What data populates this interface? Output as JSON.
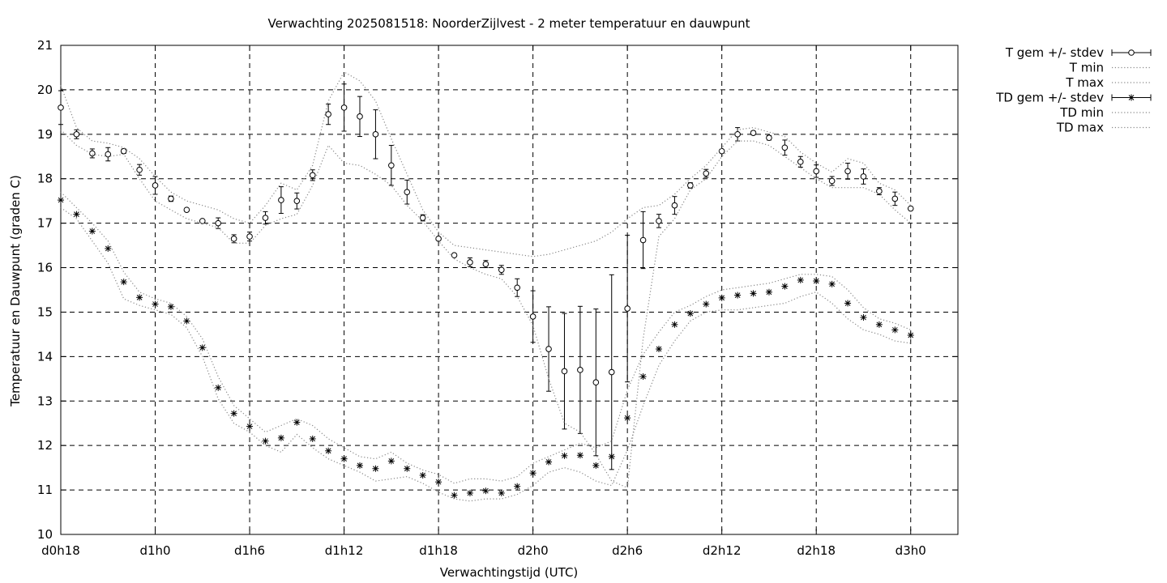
{
  "chart_data": {
    "type": "line",
    "title": "Verwachting 2025081518: NoorderZijlvest - 2 meter temperatuur en dauwpunt",
    "xlabel": "Verwachtingstijd (UTC)",
    "ylabel": "Temperatuur en Dauwpunt (graden C)",
    "xlim": [
      18,
      75
    ],
    "ylim": [
      10,
      21
    ],
    "x_ticks": [
      {
        "x": 18,
        "label": "d0h18"
      },
      {
        "x": 24,
        "label": "d1h0"
      },
      {
        "x": 30,
        "label": "d1h6"
      },
      {
        "x": 36,
        "label": "d1h12"
      },
      {
        "x": 42,
        "label": "d1h18"
      },
      {
        "x": 48,
        "label": "d2h0"
      },
      {
        "x": 54,
        "label": "d2h6"
      },
      {
        "x": 60,
        "label": "d2h12"
      },
      {
        "x": 66,
        "label": "d2h18"
      },
      {
        "x": 72,
        "label": "d3h0"
      }
    ],
    "y_ticks": [
      10,
      11,
      12,
      13,
      14,
      15,
      16,
      17,
      18,
      19,
      20,
      21
    ],
    "grid": true,
    "legend_position": "outside-top-right",
    "x": [
      18,
      19,
      20,
      21,
      22,
      23,
      24,
      25,
      26,
      27,
      28,
      29,
      30,
      31,
      32,
      33,
      34,
      35,
      36,
      37,
      38,
      39,
      40,
      41,
      42,
      43,
      44,
      45,
      46,
      47,
      48,
      49,
      50,
      51,
      52,
      53,
      54,
      55,
      56,
      57,
      58,
      59,
      60,
      61,
      62,
      63,
      64,
      65,
      66,
      67,
      68,
      69,
      70,
      71,
      72
    ],
    "series": [
      {
        "name": "T gem +/- stdev",
        "marker": "circle",
        "values": [
          19.6,
          19.0,
          18.57,
          18.55,
          18.62,
          18.2,
          17.85,
          17.55,
          17.3,
          17.05,
          17.0,
          16.65,
          16.7,
          17.12,
          17.52,
          17.5,
          18.08,
          19.45,
          19.6,
          19.4,
          19.0,
          18.3,
          17.7,
          17.12,
          16.65,
          16.28,
          16.12,
          16.08,
          15.95,
          15.55,
          14.9,
          14.17,
          13.67,
          13.7,
          13.42,
          13.65,
          15.08,
          16.62,
          17.05,
          17.4,
          17.85,
          18.12,
          18.62,
          19.0,
          19.03,
          18.92,
          18.7,
          18.38,
          18.17,
          17.95,
          18.17,
          18.05,
          17.72,
          17.55,
          17.33
        ],
        "stdev": [
          0.38,
          0.1,
          0.1,
          0.15,
          0.05,
          0.12,
          0.2,
          0.06,
          0.0,
          0.0,
          0.12,
          0.09,
          0.1,
          0.14,
          0.3,
          0.18,
          0.12,
          0.23,
          0.53,
          0.45,
          0.55,
          0.45,
          0.27,
          0.07,
          0.0,
          0.0,
          0.1,
          0.08,
          0.1,
          0.2,
          0.58,
          0.95,
          1.3,
          1.43,
          1.65,
          2.19,
          1.65,
          0.64,
          0.15,
          0.2,
          0.06,
          0.09,
          0.0,
          0.15,
          0.04,
          0.05,
          0.17,
          0.12,
          0.14,
          0.1,
          0.18,
          0.17,
          0.08,
          0.15,
          0.0
        ]
      },
      {
        "name": "T min",
        "values": [
          19.1,
          18.75,
          18.55,
          18.5,
          18.55,
          18.0,
          17.5,
          17.3,
          17.1,
          17.0,
          16.9,
          16.55,
          16.55,
          16.95,
          17.1,
          17.2,
          17.85,
          18.75,
          18.35,
          18.3,
          18.1,
          17.85,
          17.4,
          17.05,
          16.6,
          16.2,
          16.0,
          15.85,
          15.75,
          15.35,
          14.7,
          13.5,
          12.5,
          12.3,
          11.8,
          11.2,
          11.05,
          14.4,
          16.7,
          17.1,
          17.75,
          18.0,
          18.5,
          18.85,
          18.85,
          18.75,
          18.5,
          18.25,
          18.0,
          17.8,
          17.8,
          17.8,
          17.65,
          17.3,
          17.0
        ]
      },
      {
        "name": "T max",
        "values": [
          20.1,
          19.15,
          18.85,
          18.8,
          18.7,
          18.45,
          18.05,
          17.7,
          17.5,
          17.4,
          17.3,
          17.1,
          17.0,
          17.4,
          17.9,
          17.75,
          18.3,
          19.75,
          20.4,
          20.2,
          19.75,
          18.9,
          18.1,
          17.3,
          16.8,
          16.5,
          16.45,
          16.4,
          16.35,
          16.3,
          16.25,
          16.3,
          16.4,
          16.5,
          16.6,
          16.8,
          17.1,
          17.35,
          17.4,
          17.65,
          18.0,
          18.3,
          18.7,
          19.1,
          19.15,
          19.05,
          18.95,
          18.6,
          18.35,
          18.15,
          18.45,
          18.35,
          17.9,
          17.75,
          17.4
        ]
      },
      {
        "name": "TD gem +/- stdev",
        "marker": "asterisk",
        "values": [
          17.52,
          17.2,
          16.82,
          16.43,
          15.68,
          15.33,
          15.18,
          15.12,
          14.8,
          14.2,
          13.3,
          12.72,
          12.43,
          12.1,
          12.17,
          12.52,
          12.15,
          11.88,
          11.7,
          11.55,
          11.48,
          11.65,
          11.48,
          11.33,
          11.18,
          10.88,
          10.93,
          10.98,
          10.93,
          11.08,
          11.38,
          11.63,
          11.77,
          11.78,
          11.55,
          11.75,
          12.62,
          13.55,
          14.17,
          14.72,
          14.97,
          15.18,
          15.32,
          15.38,
          15.42,
          15.45,
          15.58,
          15.72,
          15.7,
          15.63,
          15.2,
          14.88,
          14.72,
          14.6,
          14.48
        ]
      },
      {
        "name": "TD min",
        "values": [
          17.35,
          17.1,
          16.6,
          16.1,
          15.3,
          15.15,
          15.05,
          14.95,
          14.65,
          14.0,
          13.05,
          12.5,
          12.3,
          12.0,
          11.85,
          12.25,
          11.95,
          11.7,
          11.55,
          11.4,
          11.2,
          11.25,
          11.3,
          11.15,
          10.95,
          10.8,
          10.75,
          10.8,
          10.8,
          10.9,
          11.1,
          11.4,
          11.5,
          11.4,
          11.2,
          11.1,
          11.9,
          12.9,
          13.8,
          14.35,
          14.8,
          15.0,
          15.05,
          15.05,
          15.1,
          15.15,
          15.2,
          15.35,
          15.45,
          15.2,
          14.85,
          14.6,
          14.5,
          14.35,
          14.3
        ]
      },
      {
        "name": "TD max",
        "values": [
          17.7,
          17.35,
          17.0,
          16.6,
          15.9,
          15.45,
          15.3,
          15.2,
          14.9,
          14.4,
          13.55,
          12.9,
          12.6,
          12.3,
          12.45,
          12.6,
          12.45,
          12.15,
          11.95,
          11.75,
          11.7,
          11.85,
          11.6,
          11.45,
          11.35,
          11.15,
          11.25,
          11.25,
          11.2,
          11.3,
          11.6,
          11.75,
          11.9,
          12.05,
          11.95,
          12.1,
          13.25,
          14.05,
          14.55,
          15.0,
          15.15,
          15.35,
          15.5,
          15.55,
          15.6,
          15.65,
          15.75,
          15.85,
          15.85,
          15.8,
          15.5,
          15.1,
          14.85,
          14.75,
          14.6
        ]
      }
    ]
  }
}
